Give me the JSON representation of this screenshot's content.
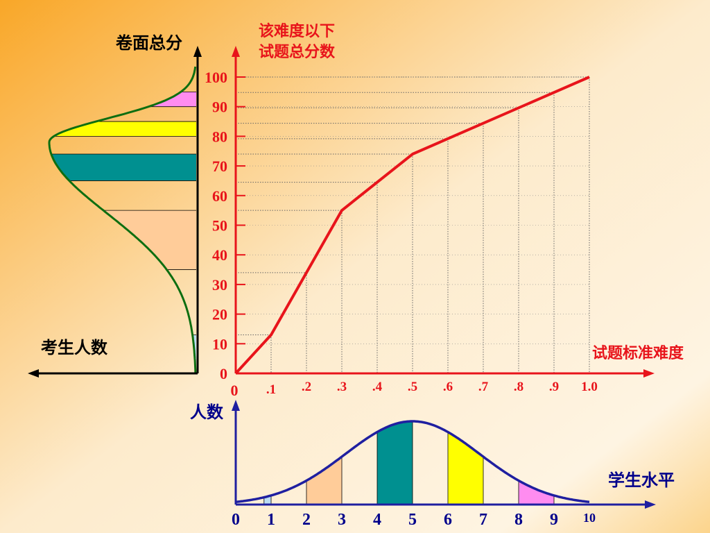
{
  "labels": {
    "left_axis_title": "卷面总分",
    "left_x_title": "考生人数",
    "main_y_title_line1": "该难度以下",
    "main_y_title_line2": "试题总分数",
    "main_x_title": "试题标准难度",
    "bottom_y_title": "人数",
    "bottom_x_title": "学生水平"
  },
  "colors": {
    "red": "#E8141B",
    "black": "#000000",
    "green": "#0E6E10",
    "navy": "#1F1FA0",
    "blue_text": "#00008B",
    "pink": "#FF8CF0",
    "yellow": "#FFFF00",
    "teal": "#009090",
    "peach": "#FFCC99",
    "lightblue": "#BCDDF2"
  },
  "chart_data": [
    {
      "type": "line",
      "xlabel": "试题标准难度",
      "ylabel": "该难度以下 试题总分数",
      "x_ticks": [
        "0",
        ".1",
        ".2",
        ".3",
        ".4",
        ".5",
        ".6",
        ".7",
        ".8",
        ".9",
        "1.0"
      ],
      "y_ticks": [
        "0",
        "10",
        "20",
        "30",
        "40",
        "50",
        "60",
        "70",
        "80",
        "90",
        "100"
      ],
      "xlim": [
        0,
        1.0
      ],
      "ylim": [
        0,
        100
      ],
      "grid": true,
      "series": [
        {
          "x": [
            0,
            0.1,
            0.3,
            0.5,
            1.0
          ],
          "y": [
            0,
            13,
            55,
            74,
            100
          ]
        }
      ]
    },
    {
      "type": "area",
      "ylabel": "人数",
      "xlabel": "学生水平",
      "x_ticks": [
        "0",
        "1",
        "2",
        "3",
        "4",
        "5",
        "6",
        "7",
        "8",
        "9",
        "10"
      ],
      "xlim": [
        0,
        10
      ],
      "curve": "normal",
      "peak_x": 5,
      "shaded_bands": [
        {
          "from": 0.8,
          "to": 1,
          "color": "lightblue"
        },
        {
          "from": 2,
          "to": 3,
          "color": "peach"
        },
        {
          "from": 4,
          "to": 5,
          "color": "teal"
        },
        {
          "from": 6,
          "to": 7,
          "color": "yellow"
        },
        {
          "from": 8,
          "to": 9,
          "color": "pink"
        }
      ]
    },
    {
      "type": "area",
      "ylabel": "卷面总分",
      "xlabel": "考生人数",
      "curve": "skewed",
      "peak_score": 78,
      "shaded_bands": [
        {
          "from": 0,
          "to": 13,
          "color": "lightblue"
        },
        {
          "from": 35,
          "to": 55,
          "color": "peach"
        },
        {
          "from": 65,
          "to": 74,
          "color": "teal"
        },
        {
          "from": 80,
          "to": 85,
          "color": "yellow"
        },
        {
          "from": 90,
          "to": 95,
          "color": "pink"
        }
      ]
    }
  ]
}
